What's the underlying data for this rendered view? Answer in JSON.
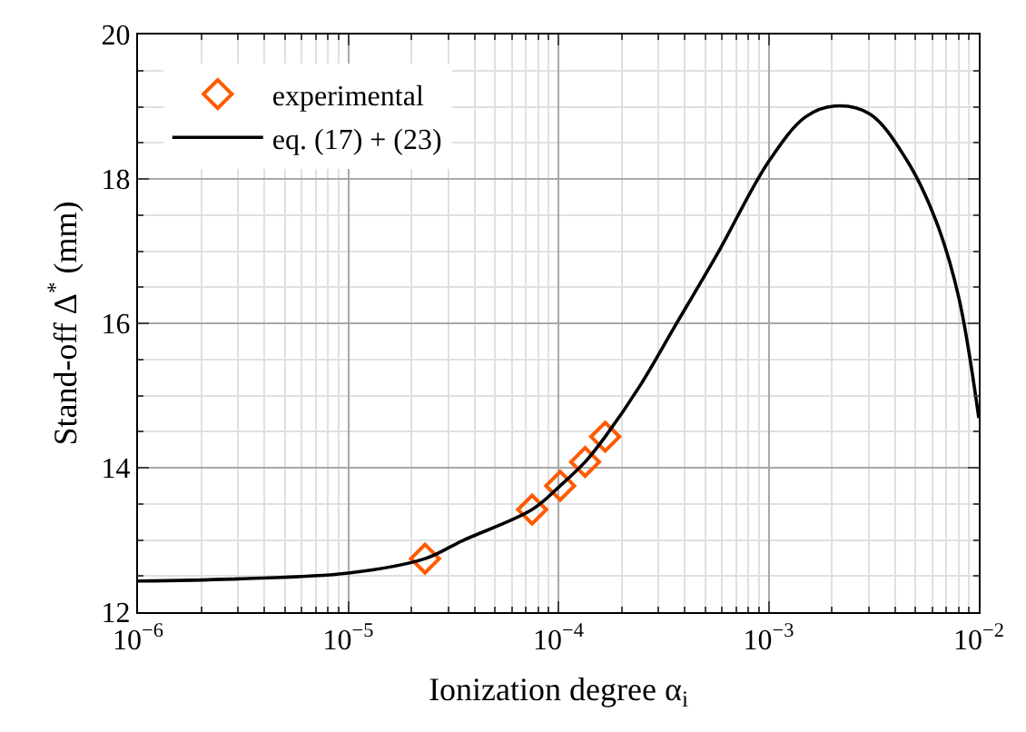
{
  "chart_data": {
    "type": "line",
    "xlabel": "Ionization degree α$_{i}$",
    "ylabel": "Stand-off Δ$^{*}$ (mm)",
    "log": "x",
    "grid": true,
    "legend": "top left",
    "xlim": [
      1e-06,
      0.01
    ],
    "xticks": [
      {
        "value": 1e-06,
        "label": "10$^{−6}$"
      },
      {
        "value": 1e-05,
        "label": "10$^{−5}$"
      },
      {
        "value": 0.0001,
        "label": "10$^{−4}$"
      },
      {
        "value": 0.001,
        "label": "10$^{−3}$"
      },
      {
        "value": 0.01,
        "label": "10$^{−2}$"
      }
    ],
    "ylim": [
      12,
      20
    ],
    "yticks": [
      12,
      14,
      16,
      18,
      20
    ],
    "series": [
      {
        "name": "experimental",
        "type": "scatter",
        "marker": "diamond",
        "color": "#ff5a00",
        "x": [
          2.32e-05,
          7.5e-05,
          0.000102,
          0.000134,
          0.000167
        ],
        "values": [
          12.74,
          13.42,
          13.75,
          14.08,
          14.43
        ]
      },
      {
        "name": "eq. (17) + (23)",
        "marker": "none",
        "line_style": "solid",
        "color": "#000000",
        "x": [
          1e-06,
          3e-06,
          1e-05,
          2.32e-05,
          3.5e-05,
          7.5e-05,
          0.000102,
          0.000134,
          0.000167,
          0.000245,
          0.00036,
          0.00057,
          0.001,
          0.0015,
          0.00206,
          0.00303,
          0.0045,
          0.0062,
          0.008,
          0.01
        ],
        "values": [
          12.43,
          12.46,
          12.54,
          12.74,
          12.99,
          13.42,
          13.75,
          14.08,
          14.43,
          15.14,
          15.97,
          16.96,
          18.24,
          18.86,
          19.01,
          18.9,
          18.28,
          17.45,
          16.38,
          14.69
        ]
      }
    ]
  }
}
